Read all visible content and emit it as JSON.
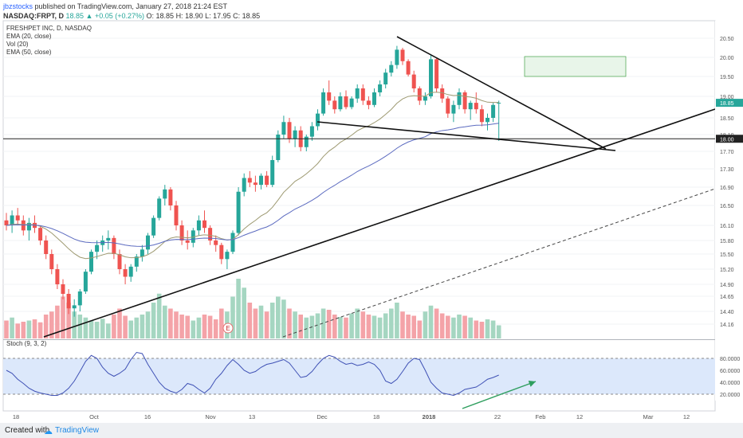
{
  "header": {
    "user": "jbzstocks",
    "published": " published on TradingView.com, January 27, 2018 21:24 EST",
    "symbol": "NASDAQ:FRPT, D",
    "change": "18.85 ▲ +0.05 (+0.27%)",
    "ohlc_o": "O: 18.85",
    "ohlc_h": "H: 18.90",
    "ohlc_l": "L: 17.95",
    "ohlc_c": "C: 18.85"
  },
  "legend": {
    "title": "FRESHPET INC, D, NASDAQ",
    "ema20": "EMA (20, close)",
    "vol": "Vol (20)",
    "ema50": "EMA (50, close)",
    "stoch": "Stoch (9, 3, 2)"
  },
  "price_axis": {
    "ticks": [
      "20.50",
      "20.00",
      "19.50",
      "19.00",
      "18.50",
      "18.10",
      "17.70",
      "17.30",
      "16.90",
      "16.50",
      "16.10",
      "15.80",
      "15.50",
      "15.20",
      "14.90",
      "14.65",
      "14.40",
      "14.16"
    ],
    "last_price": "18.85",
    "level_label": "18.00"
  },
  "stoch_axis": {
    "ticks": [
      "80.0000",
      "60.0000",
      "40.0000",
      "20.0000"
    ]
  },
  "time_axis": {
    "ticks": [
      "18",
      "Oct",
      "16",
      "Nov",
      "13",
      "Dec",
      "18",
      "2018",
      "22",
      "Feb",
      "12",
      "Mar",
      "12"
    ]
  },
  "earnings_marker": "E",
  "footer": {
    "created": "Created with",
    "brand": "TradingView",
    "logo_icon": "tradingview-logo-icon"
  },
  "colors": {
    "up": "#26a69a",
    "down": "#ef5350",
    "vol_up": "#a5d6c1",
    "vol_down": "#f4a3a8",
    "ema20": "#9e9a72",
    "ema50": "#5c6bc0",
    "stoch": "#3f51b5",
    "stoch_band": "#dce8fb",
    "target_box": "#e8f5e9",
    "target_border": "#43a047",
    "arrow": "#2e9e5e"
  },
  "chart_data": {
    "type": "candlestick",
    "title": "FRESHPET INC, D, NASDAQ",
    "last_close": 18.85,
    "horizontal_level": 18.0,
    "candles_o_h_l_c": [
      [
        16.2,
        16.35,
        16.0,
        16.1
      ],
      [
        16.1,
        16.4,
        15.95,
        16.3
      ],
      [
        16.3,
        16.45,
        16.1,
        16.2
      ],
      [
        16.2,
        16.3,
        15.9,
        16.0
      ],
      [
        16.0,
        16.25,
        15.8,
        16.15
      ],
      [
        16.15,
        16.3,
        15.95,
        16.05
      ],
      [
        16.05,
        16.1,
        15.7,
        15.8
      ],
      [
        15.8,
        15.9,
        15.4,
        15.5
      ],
      [
        15.5,
        15.6,
        15.1,
        15.2
      ],
      [
        15.2,
        15.3,
        14.8,
        14.9
      ],
      [
        14.9,
        15.0,
        14.6,
        14.7
      ],
      [
        14.7,
        14.8,
        14.35,
        14.45
      ],
      [
        14.45,
        14.6,
        14.3,
        14.5
      ],
      [
        14.5,
        14.8,
        14.4,
        14.75
      ],
      [
        14.75,
        15.2,
        14.7,
        15.15
      ],
      [
        15.15,
        15.6,
        15.1,
        15.55
      ],
      [
        15.55,
        15.8,
        15.4,
        15.7
      ],
      [
        15.7,
        15.9,
        15.55,
        15.8
      ],
      [
        15.8,
        16.0,
        15.6,
        15.85
      ],
      [
        15.85,
        15.9,
        15.4,
        15.5
      ],
      [
        15.5,
        15.6,
        15.1,
        15.2
      ],
      [
        15.2,
        15.3,
        14.9,
        15.05
      ],
      [
        15.05,
        15.3,
        14.95,
        15.25
      ],
      [
        15.25,
        15.5,
        15.15,
        15.45
      ],
      [
        15.45,
        15.7,
        15.35,
        15.6
      ],
      [
        15.6,
        15.95,
        15.5,
        15.9
      ],
      [
        15.9,
        16.3,
        15.85,
        16.25
      ],
      [
        16.25,
        16.7,
        16.2,
        16.65
      ],
      [
        16.65,
        16.95,
        16.5,
        16.85
      ],
      [
        16.85,
        16.9,
        16.4,
        16.5
      ],
      [
        16.5,
        16.6,
        16.0,
        16.1
      ],
      [
        16.1,
        16.2,
        15.7,
        15.8
      ],
      [
        15.8,
        16.0,
        15.6,
        15.75
      ],
      [
        15.75,
        16.05,
        15.65,
        16.0
      ],
      [
        16.0,
        16.3,
        15.9,
        16.2
      ],
      [
        16.2,
        16.4,
        15.95,
        16.05
      ],
      [
        16.05,
        16.1,
        15.7,
        15.8
      ],
      [
        15.8,
        15.9,
        15.55,
        15.7
      ],
      [
        15.7,
        15.75,
        15.3,
        15.4
      ],
      [
        15.4,
        15.6,
        15.2,
        15.55
      ],
      [
        15.55,
        16.0,
        15.5,
        15.95
      ],
      [
        15.95,
        16.9,
        15.9,
        16.8
      ],
      [
        16.8,
        17.2,
        16.7,
        17.1
      ],
      [
        17.1,
        17.25,
        16.9,
        17.0
      ],
      [
        17.0,
        17.15,
        16.8,
        16.95
      ],
      [
        16.95,
        17.2,
        16.85,
        17.15
      ],
      [
        17.15,
        17.25,
        16.9,
        16.95
      ],
      [
        16.95,
        17.6,
        16.9,
        17.5
      ],
      [
        17.5,
        18.2,
        17.45,
        18.1
      ],
      [
        18.1,
        18.55,
        18.0,
        18.4
      ],
      [
        18.4,
        18.5,
        17.9,
        18.0
      ],
      [
        18.0,
        18.3,
        17.8,
        18.2
      ],
      [
        18.2,
        18.3,
        17.7,
        17.8
      ],
      [
        17.8,
        18.1,
        17.7,
        18.05
      ],
      [
        18.05,
        18.4,
        17.95,
        18.3
      ],
      [
        18.3,
        18.7,
        18.2,
        18.6
      ],
      [
        18.6,
        19.2,
        18.55,
        19.1
      ],
      [
        19.1,
        19.4,
        18.8,
        18.9
      ],
      [
        18.9,
        19.0,
        18.6,
        18.7
      ],
      [
        18.7,
        19.1,
        18.65,
        19.0
      ],
      [
        19.0,
        19.15,
        18.7,
        18.75
      ],
      [
        18.75,
        19.0,
        18.7,
        18.95
      ],
      [
        18.95,
        19.3,
        18.85,
        19.2
      ],
      [
        19.2,
        19.3,
        18.8,
        18.9
      ],
      [
        18.9,
        19.0,
        18.7,
        18.8
      ],
      [
        18.8,
        19.2,
        18.75,
        19.1
      ],
      [
        19.1,
        19.4,
        19.0,
        19.3
      ],
      [
        19.3,
        19.7,
        19.2,
        19.6
      ],
      [
        19.6,
        19.9,
        19.5,
        19.8
      ],
      [
        19.8,
        20.3,
        19.7,
        20.2
      ],
      [
        20.2,
        20.25,
        19.8,
        19.9
      ],
      [
        19.9,
        19.95,
        19.5,
        19.55
      ],
      [
        19.55,
        19.65,
        19.1,
        19.2
      ],
      [
        19.2,
        19.25,
        18.8,
        18.9
      ],
      [
        18.9,
        19.1,
        18.8,
        19.0
      ],
      [
        19.0,
        20.05,
        18.95,
        19.95
      ],
      [
        19.95,
        20.0,
        19.1,
        19.2
      ],
      [
        19.2,
        19.3,
        18.85,
        18.95
      ],
      [
        18.95,
        19.0,
        18.5,
        18.6
      ],
      [
        18.6,
        18.9,
        18.4,
        18.8
      ],
      [
        18.8,
        19.2,
        18.7,
        19.1
      ],
      [
        19.1,
        19.15,
        18.6,
        18.7
      ],
      [
        18.7,
        18.9,
        18.45,
        18.85
      ],
      [
        18.85,
        19.1,
        18.6,
        18.7
      ],
      [
        18.7,
        18.8,
        18.3,
        18.4
      ],
      [
        18.4,
        18.6,
        18.2,
        18.5
      ],
      [
        18.5,
        18.85,
        18.4,
        18.8
      ],
      [
        18.85,
        18.9,
        17.95,
        18.85
      ]
    ],
    "volume_relative": [
      0.3,
      0.35,
      0.25,
      0.28,
      0.3,
      0.32,
      0.27,
      0.4,
      0.45,
      0.55,
      0.7,
      0.6,
      0.45,
      0.4,
      0.35,
      0.3,
      0.28,
      0.33,
      0.25,
      0.4,
      0.5,
      0.38,
      0.3,
      0.35,
      0.4,
      0.45,
      0.6,
      0.75,
      0.55,
      0.5,
      0.45,
      0.4,
      0.38,
      0.3,
      0.35,
      0.4,
      0.38,
      0.32,
      0.5,
      0.45,
      0.7,
      1.0,
      0.85,
      0.6,
      0.5,
      0.55,
      0.45,
      0.6,
      0.7,
      0.65,
      0.5,
      0.45,
      0.4,
      0.35,
      0.38,
      0.42,
      0.5,
      0.48,
      0.4,
      0.36,
      0.35,
      0.42,
      0.5,
      0.45,
      0.4,
      0.38,
      0.35,
      0.42,
      0.5,
      0.6,
      0.45,
      0.4,
      0.38,
      0.3,
      0.45,
      0.55,
      0.5,
      0.42,
      0.38,
      0.35,
      0.4,
      0.38,
      0.35,
      0.3,
      0.28,
      0.32,
      0.3,
      0.22
    ],
    "stochastic": [
      60,
      55,
      45,
      38,
      30,
      25,
      22,
      20,
      18,
      18,
      22,
      30,
      42,
      58,
      75,
      85,
      80,
      65,
      55,
      50,
      55,
      62,
      78,
      90,
      88,
      70,
      55,
      40,
      30,
      25,
      22,
      28,
      38,
      35,
      28,
      22,
      30,
      45,
      55,
      68,
      78,
      70,
      60,
      55,
      58,
      65,
      70,
      72,
      75,
      78,
      72,
      60,
      48,
      50,
      58,
      70,
      80,
      85,
      82,
      75,
      70,
      72,
      68,
      70,
      74,
      70,
      60,
      42,
      38,
      45,
      58,
      72,
      80,
      78,
      60,
      40,
      30,
      22,
      20,
      18,
      22,
      28,
      30,
      32,
      38,
      45,
      48,
      52
    ],
    "stochastic_band": [
      20,
      80
    ],
    "ema20_relative_to_close_sma": true
  }
}
